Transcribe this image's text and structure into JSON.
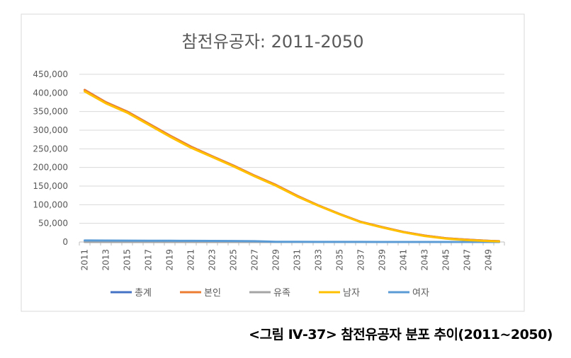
{
  "caption": "<그림 Ⅳ-37> 참전유공자 분포 추이(2011~2050)",
  "chart_data": {
    "type": "line",
    "title": "참전유공자: 2011-2050",
    "xlabel": "",
    "ylabel": "",
    "x_tick_labels": [
      "2011",
      "2013",
      "2015",
      "2017",
      "2019",
      "2021",
      "2023",
      "2025",
      "2027",
      "2029",
      "2031",
      "2033",
      "2035",
      "2037",
      "2039",
      "2041",
      "2043",
      "2045",
      "2047",
      "2049"
    ],
    "y_tick_labels": [
      "0",
      "50,000",
      "100,000",
      "150,000",
      "200,000",
      "250,000",
      "300,000",
      "350,000",
      "400,000",
      "450,000"
    ],
    "ylim": [
      0,
      450000
    ],
    "xlim": [
      2011,
      2050
    ],
    "grid": true,
    "legend_position": "bottom",
    "series": [
      {
        "name": "총계",
        "color": "#4472C4",
        "x": [
          2011,
          2013,
          2015,
          2017,
          2019,
          2021,
          2023,
          2025,
          2027,
          2029,
          2031,
          2033,
          2035,
          2037,
          2039,
          2041,
          2043,
          2045,
          2047,
          2049,
          2050
        ],
        "y": [
          408000,
          375000,
          350000,
          318000,
          286000,
          256000,
          230000,
          205000,
          178000,
          153000,
          124000,
          98000,
          75000,
          54000,
          40000,
          27000,
          17000,
          10000,
          6000,
          3000,
          2000
        ]
      },
      {
        "name": "본인",
        "color": "#ED7D31",
        "x": [
          2011,
          2013,
          2015,
          2017,
          2019,
          2021,
          2023,
          2025,
          2027,
          2029,
          2031,
          2033,
          2035,
          2037,
          2039,
          2041,
          2043,
          2045,
          2047,
          2049,
          2050
        ],
        "y": [
          408000,
          375000,
          350000,
          318000,
          286000,
          256000,
          230000,
          205000,
          178000,
          153000,
          124000,
          98000,
          75000,
          54000,
          40000,
          27000,
          17000,
          10000,
          6000,
          3000,
          2000
        ]
      },
      {
        "name": "유족",
        "color": "#A5A5A5",
        "x": [
          2011,
          2013,
          2015,
          2017,
          2019,
          2021,
          2023,
          2025,
          2027,
          2029,
          2031,
          2033,
          2035,
          2037,
          2039,
          2041,
          2043,
          2045,
          2047,
          2049,
          2050
        ],
        "y": [
          0,
          0,
          0,
          0,
          0,
          0,
          0,
          0,
          0,
          0,
          0,
          0,
          0,
          0,
          0,
          0,
          0,
          0,
          0,
          0,
          0
        ]
      },
      {
        "name": "남자",
        "color": "#FFC000",
        "x": [
          2011,
          2013,
          2015,
          2017,
          2019,
          2021,
          2023,
          2025,
          2027,
          2029,
          2031,
          2033,
          2035,
          2037,
          2039,
          2041,
          2043,
          2045,
          2047,
          2049,
          2050
        ],
        "y": [
          404000,
          372000,
          347000,
          315000,
          283000,
          253000,
          228000,
          203000,
          176000,
          151000,
          122000,
          97000,
          74000,
          53000,
          39000,
          26000,
          16000,
          9000,
          5000,
          2500,
          1500
        ]
      },
      {
        "name": "여자",
        "color": "#5B9BD5",
        "x": [
          2011,
          2013,
          2015,
          2017,
          2019,
          2021,
          2023,
          2025,
          2027,
          2029,
          2031,
          2033,
          2035,
          2037,
          2039,
          2041,
          2043,
          2045,
          2047,
          2049,
          2050
        ],
        "y": [
          4000,
          3800,
          3600,
          3400,
          3200,
          3000,
          2800,
          2600,
          2000,
          600,
          300,
          200,
          100,
          100,
          50,
          50,
          0,
          0,
          0,
          0,
          0
        ]
      }
    ]
  }
}
